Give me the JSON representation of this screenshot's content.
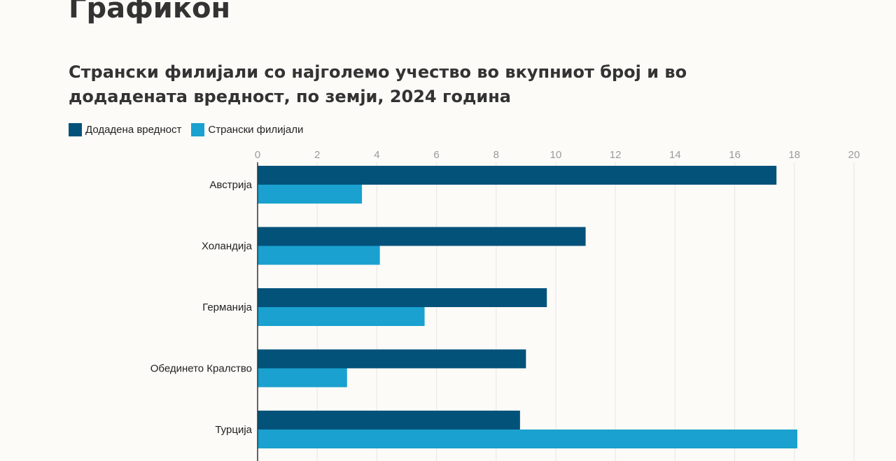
{
  "page": {
    "heading": "Графикон"
  },
  "chart_data": {
    "type": "bar",
    "orientation": "horizontal",
    "title": "Странски филијали со најголемо учество во вкупниот број и во додадената вредност, по земји, 2024 година",
    "xlabel": "",
    "ylabel": "",
    "xlim": [
      0,
      20
    ],
    "xticks": [
      "0",
      "2",
      "4",
      "6",
      "8",
      "10",
      "12",
      "14",
      "16",
      "18",
      "20"
    ],
    "axis_position": "top",
    "grid": true,
    "legend_position": "top-left",
    "categories": [
      "Австрија",
      "Холандија",
      "Германија",
      "Обединето Кралство",
      "Турција"
    ],
    "series": [
      {
        "name": "Додадена вредност",
        "color": "#03527a",
        "values": [
          17.4,
          11.0,
          9.7,
          9.0,
          8.8
        ]
      },
      {
        "name": "Странски филијали",
        "color": "#1aa1cf",
        "values": [
          3.5,
          4.1,
          5.6,
          3.0,
          18.1
        ]
      }
    ]
  }
}
